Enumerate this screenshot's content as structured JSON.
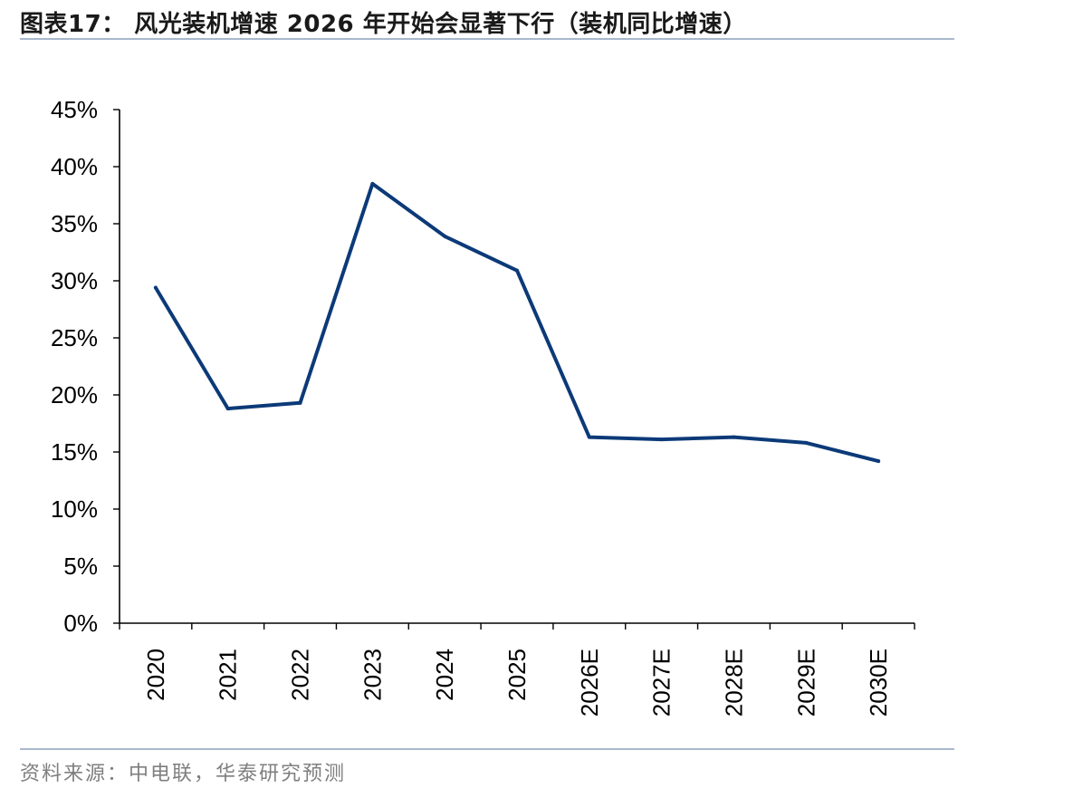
{
  "header": {
    "title": "图表17：  风光装机增速 2026 年开始会显著下行（装机同比增速）"
  },
  "footer": {
    "source": "资料来源：中电联，华泰研究预测"
  },
  "colors": {
    "line": "#0c3a78",
    "axis": "#000000",
    "rule": "#a8b8cc",
    "source_text": "#7f7f7f"
  },
  "chart_data": {
    "type": "line",
    "title": "",
    "xlabel": "",
    "ylabel": "",
    "categories": [
      "2020",
      "2021",
      "2022",
      "2023",
      "2024",
      "2025",
      "2026E",
      "2027E",
      "2028E",
      "2029E",
      "2030E"
    ],
    "series": [
      {
        "values": [
          29.4,
          18.8,
          19.3,
          38.5,
          33.9,
          30.9,
          16.3,
          16.1,
          16.3,
          15.8,
          14.2
        ]
      }
    ],
    "y_ticks": [
      "0%",
      "5%",
      "10%",
      "15%",
      "20%",
      "25%",
      "30%",
      "35%",
      "40%",
      "45%"
    ],
    "ylim": [
      0,
      45
    ],
    "y_unit": "%",
    "grid": false,
    "legend": "none"
  }
}
